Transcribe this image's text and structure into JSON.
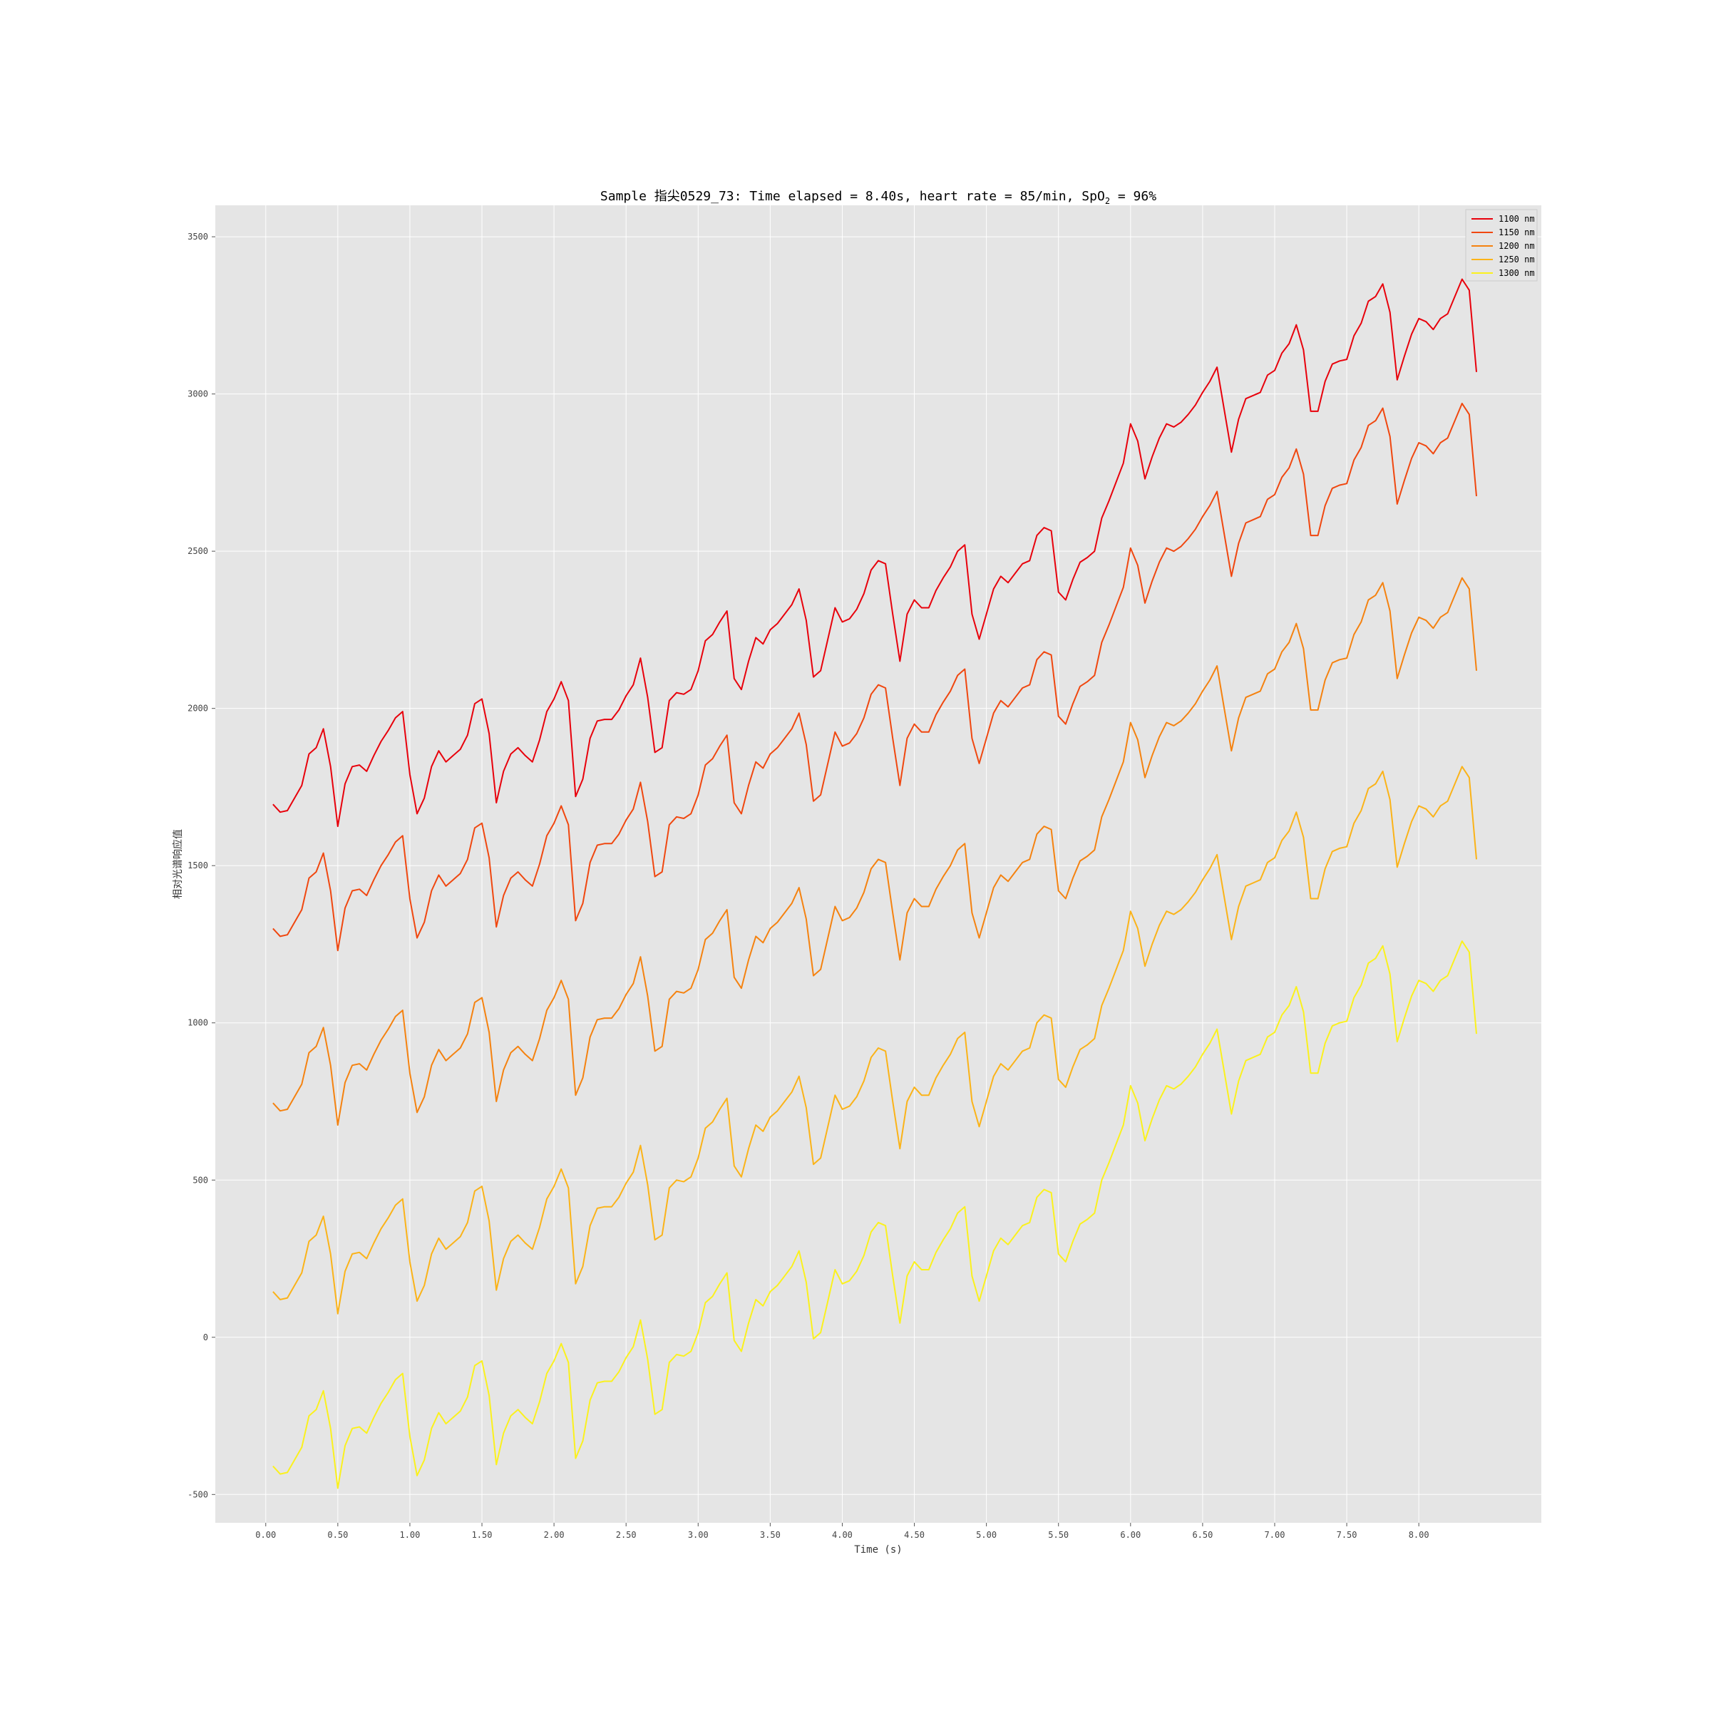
{
  "chart_data": {
    "type": "line",
    "title": "Sample 指尖0529_73: Time elapsed = 8.40s, heart rate = 85/min, SpO",
    "title_sub": "2",
    "title_end": " = 96%",
    "xlabel": "Time (s)",
    "ylabel": "相对光谱响应值",
    "xlim": [
      -0.35,
      8.85
    ],
    "ylim": [
      -590,
      3600
    ],
    "xticks": [
      0,
      0.5,
      1,
      1.5,
      2,
      2.5,
      3,
      3.5,
      4,
      4.5,
      5,
      5.5,
      6,
      6.5,
      7,
      7.5,
      8
    ],
    "xtick_labels": [
      "0.00",
      "0.50",
      "1.00",
      "1.50",
      "2.00",
      "2.50",
      "3.00",
      "3.50",
      "4.00",
      "4.50",
      "5.00",
      "5.50",
      "6.00",
      "6.50",
      "7.00",
      "7.50",
      "8.00"
    ],
    "yticks": [
      -500,
      0,
      500,
      1000,
      1500,
      2000,
      2500,
      3000,
      3500
    ],
    "ytick_labels": [
      "-500",
      "0",
      "500",
      "1000",
      "1500",
      "2000",
      "2500",
      "3000",
      "3500"
    ],
    "grid": true,
    "legend_position": "top-right",
    "background": "#e5e5e5",
    "base_series": {
      "x": [
        0.05,
        0.1,
        0.15,
        0.2,
        0.25,
        0.3,
        0.35,
        0.4,
        0.45,
        0.5,
        0.55,
        0.6,
        0.65,
        0.7,
        0.75,
        0.8,
        0.85,
        0.9,
        0.95,
        1.0,
        1.05,
        1.1,
        1.15,
        1.2,
        1.25,
        1.3,
        1.35,
        1.4,
        1.45,
        1.5,
        1.55,
        1.6,
        1.65,
        1.7,
        1.75,
        1.8,
        1.85,
        1.9,
        1.95,
        2.0,
        2.05,
        2.1,
        2.15,
        2.2,
        2.25,
        2.3,
        2.35,
        2.4,
        2.45,
        2.5,
        2.55,
        2.6,
        2.65,
        2.7,
        2.75,
        2.8,
        2.85,
        2.9,
        2.95,
        3.0,
        3.05,
        3.1,
        3.15,
        3.2,
        3.25,
        3.3,
        3.35,
        3.4,
        3.45,
        3.5,
        3.55,
        3.6,
        3.65,
        3.7,
        3.75,
        3.8,
        3.85,
        3.9,
        3.95,
        4.0,
        4.05,
        4.1,
        4.15,
        4.2,
        4.25,
        4.3,
        4.35,
        4.4,
        4.45,
        4.5,
        4.55,
        4.6,
        4.65,
        4.7,
        4.75,
        4.8,
        4.85,
        4.9,
        4.95,
        5.0,
        5.05,
        5.1,
        5.15,
        5.2,
        5.25,
        5.3,
        5.35,
        5.4,
        5.45,
        5.5,
        5.55,
        5.6,
        5.65,
        5.7,
        5.75,
        5.8,
        5.85,
        5.9,
        5.95,
        6.0,
        6.05,
        6.1,
        6.15,
        6.2,
        6.25,
        6.3,
        6.35,
        6.4,
        6.45,
        6.5,
        6.55,
        6.6,
        6.65,
        6.7,
        6.75,
        6.8,
        6.85,
        6.9,
        6.95,
        7.0,
        7.05,
        7.1,
        7.15,
        7.2,
        7.25,
        7.3,
        7.35,
        7.4,
        7.45,
        7.5,
        7.55,
        7.6,
        7.65,
        7.7,
        7.75,
        7.8,
        7.85,
        7.9,
        7.95,
        8.0,
        8.05,
        8.1,
        8.15,
        8.2,
        8.25,
        8.3,
        8.35,
        8.4
      ],
      "y": [
        1695,
        1670,
        1675,
        1715,
        1755,
        1855,
        1875,
        1935,
        1815,
        1625,
        1760,
        1815,
        1820,
        1800,
        1850,
        1895,
        1930,
        1970,
        1990,
        1790,
        1665,
        1715,
        1815,
        1865,
        1830,
        1850,
        1870,
        1915,
        2015,
        2030,
        1920,
        1700,
        1800,
        1855,
        1875,
        1850,
        1830,
        1900,
        1990,
        2030,
        2085,
        2025,
        1720,
        1775,
        1905,
        1960,
        1965,
        1965,
        1995,
        2040,
        2075,
        2160,
        2035,
        1860,
        1875,
        2025,
        2050,
        2045,
        2060,
        2120,
        2215,
        2235,
        2275,
        2310,
        2095,
        2060,
        2150,
        2225,
        2205,
        2250,
        2270,
        2300,
        2330,
        2380,
        2280,
        2100,
        2120,
        2220,
        2320,
        2275,
        2285,
        2315,
        2365,
        2440,
        2470,
        2460,
        2300,
        2150,
        2300,
        2345,
        2320,
        2320,
        2375,
        2415,
        2450,
        2500,
        2520,
        2300,
        2220,
        2300,
        2380,
        2420,
        2400,
        2430,
        2460,
        2470,
        2550,
        2575,
        2565,
        2370,
        2345,
        2410,
        2465,
        2480,
        2500,
        2605,
        2660,
        2720,
        2780,
        2905,
        2850,
        2730,
        2800,
        2860,
        2905,
        2895,
        2910,
        2935,
        2965,
        3005,
        3040,
        3085,
        2950,
        2815,
        2920,
        2985,
        2995,
        3005,
        3060,
        3075,
        3130,
        3160,
        3220,
        3140,
        2945,
        2945,
        3040,
        3095,
        3105,
        3110,
        3185,
        3225,
        3295,
        3310,
        3350,
        3260,
        3045,
        3120,
        3190,
        3240,
        3230,
        3205,
        3240,
        3255,
        3310,
        3365,
        3330,
        3070
      ]
    },
    "series": [
      {
        "name": "1100 nm",
        "offset": 0
      },
      {
        "name": "1150 nm",
        "offset": -395
      },
      {
        "name": "1200 nm",
        "offset": -950
      },
      {
        "name": "1250 nm",
        "offset": -1550
      },
      {
        "name": "1300 nm",
        "offset": -2105
      }
    ],
    "colors": [
      "#e8000b",
      "#f0470f",
      "#f5820f",
      "#fbb318",
      "#fbf11d"
    ]
  }
}
